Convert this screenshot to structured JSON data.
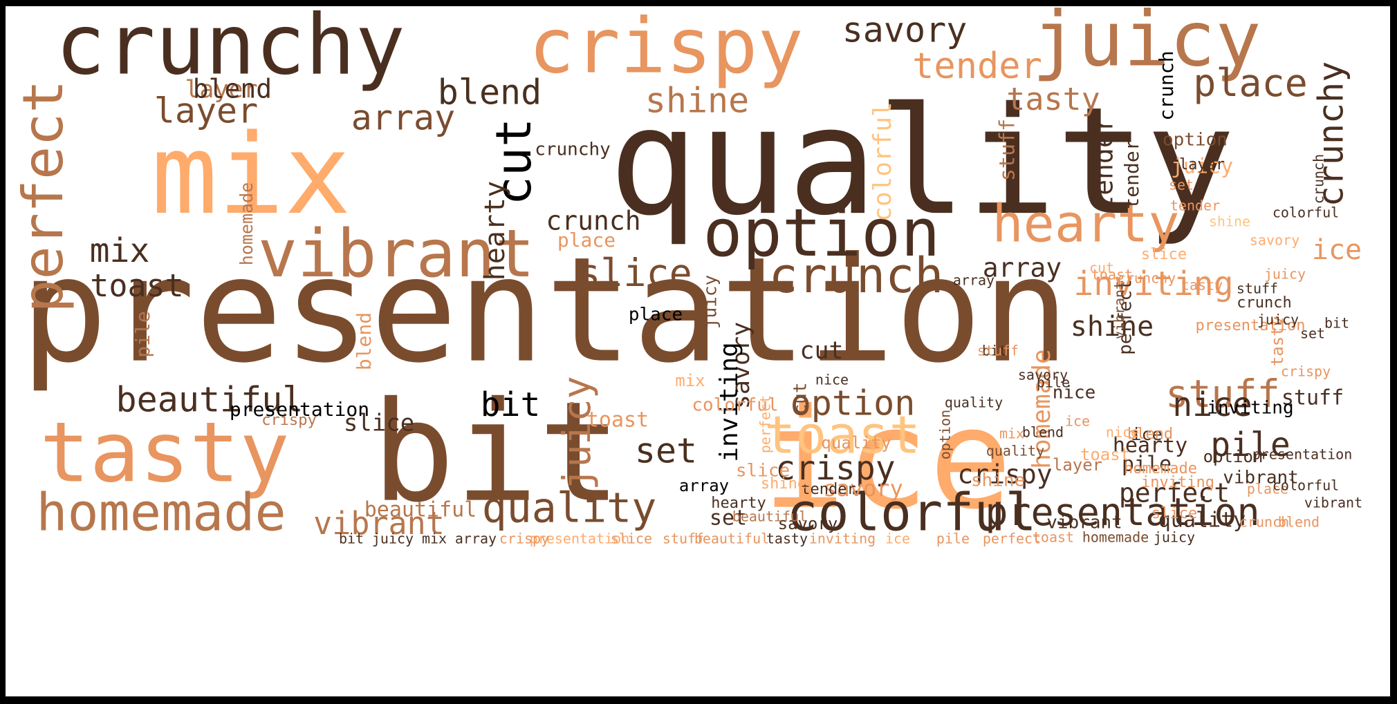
{
  "palette": {
    "c1": "#4a2f20",
    "c2": "#7a4c2e",
    "c3": "#b7764c",
    "c4": "#e8955f",
    "c5": "#ffab6b",
    "c6": "#ffc47f",
    "c7": "#000000"
  },
  "words": [
    {
      "text": "presentation",
      "color": "c2"
    },
    {
      "text": "quality",
      "color": "c1"
    },
    {
      "text": "bit",
      "color": "c2"
    },
    {
      "text": "ice",
      "color": "c5"
    },
    {
      "text": "mix",
      "color": "c5"
    },
    {
      "text": "crunchy",
      "color": "c1"
    },
    {
      "text": "crispy",
      "color": "c4"
    },
    {
      "text": "juicy",
      "color": "c3"
    },
    {
      "text": "tasty",
      "color": "c4"
    },
    {
      "text": "vibrant",
      "color": "c3"
    },
    {
      "text": "option",
      "color": "c1"
    },
    {
      "text": "homemade",
      "color": "c3"
    },
    {
      "text": "colorful",
      "color": "c1"
    },
    {
      "text": "presentation",
      "color": "c1"
    },
    {
      "text": "toast",
      "color": "c6"
    },
    {
      "text": "hearty",
      "color": "c4"
    },
    {
      "text": "perfect",
      "color": "c3"
    },
    {
      "text": "cut",
      "color": "c7"
    },
    {
      "text": "crunch",
      "color": "c2"
    },
    {
      "text": "quality",
      "color": "c2"
    },
    {
      "text": "beautiful",
      "color": "c1"
    },
    {
      "text": "savory",
      "color": "c1"
    },
    {
      "text": "tender",
      "color": "c4"
    },
    {
      "text": "place",
      "color": "c2"
    },
    {
      "text": "blend",
      "color": "c1"
    },
    {
      "text": "shine",
      "color": "c3"
    },
    {
      "text": "array",
      "color": "c2"
    },
    {
      "text": "layer",
      "color": "c2"
    },
    {
      "text": "slice",
      "color": "c2"
    },
    {
      "text": "stuff",
      "color": "c3"
    },
    {
      "text": "crispy",
      "color": "c1"
    },
    {
      "text": "juicy",
      "color": "c3"
    },
    {
      "text": "option",
      "color": "c2"
    },
    {
      "text": "inviting",
      "color": "c4"
    },
    {
      "text": "pile",
      "color": "c1"
    },
    {
      "text": "nice",
      "color": "c1"
    },
    {
      "text": "set",
      "color": "c1"
    },
    {
      "text": "bit",
      "color": "c7"
    },
    {
      "text": "perfect",
      "color": "c1"
    },
    {
      "text": "tasty",
      "color": "c3"
    },
    {
      "text": "crunchy",
      "color": "c1"
    },
    {
      "text": "ice",
      "color": "c4"
    },
    {
      "text": "mix",
      "color": "c1"
    },
    {
      "text": "toast",
      "color": "c1"
    },
    {
      "text": "vibrant",
      "color": "c3"
    },
    {
      "text": "hearty",
      "color": "c1"
    },
    {
      "text": "shine",
      "color": "c1"
    },
    {
      "text": "savory",
      "color": "c1"
    },
    {
      "text": "array",
      "color": "c1"
    },
    {
      "text": "tender",
      "color": "c1"
    },
    {
      "text": "homemade",
      "color": "c4"
    },
    {
      "text": "colorful",
      "color": "c6"
    },
    {
      "text": "cut",
      "color": "c1"
    },
    {
      "text": "crunch",
      "color": "c1"
    },
    {
      "text": "layer",
      "color": "c3"
    },
    {
      "text": "blend",
      "color": "c1"
    },
    {
      "text": "inviting",
      "color": "c7"
    },
    {
      "text": "place",
      "color": "c4"
    },
    {
      "text": "slice",
      "color": "c1"
    },
    {
      "text": "presentation",
      "color": "c7"
    },
    {
      "text": "stuff",
      "color": "c1"
    },
    {
      "text": "set",
      "color": "c1"
    },
    {
      "text": "hearty",
      "color": "c1"
    },
    {
      "text": "pile",
      "color": "c1"
    },
    {
      "text": "quality",
      "color": "c1"
    },
    {
      "text": "savory",
      "color": "c4"
    },
    {
      "text": "crispy",
      "color": "c1"
    },
    {
      "text": "beautiful",
      "color": "c3"
    },
    {
      "text": "juicy",
      "color": "c5"
    },
    {
      "text": "perfect",
      "color": "c1"
    },
    {
      "text": "stuff",
      "color": "c3"
    },
    {
      "text": "tender",
      "color": "c1"
    },
    {
      "text": "nice",
      "color": "c1"
    },
    {
      "text": "toast",
      "color": "c4"
    },
    {
      "text": "vibrant",
      "color": "c1"
    },
    {
      "text": "option",
      "color": "c2"
    },
    {
      "text": "shine",
      "color": "c4"
    },
    {
      "text": "slice",
      "color": "c4"
    },
    {
      "text": "crunchy",
      "color": "c1"
    },
    {
      "text": "crunch",
      "color": "c7"
    },
    {
      "text": "inviting",
      "color": "c7"
    },
    {
      "text": "pile",
      "color": "c3"
    },
    {
      "text": "juicy",
      "color": "c2"
    },
    {
      "text": "blend",
      "color": "c4"
    },
    {
      "text": "place",
      "color": "c7"
    },
    {
      "text": "colorful",
      "color": "c4"
    },
    {
      "text": "cut",
      "color": "c2"
    },
    {
      "text": "homemade",
      "color": "c3"
    },
    {
      "text": "mix",
      "color": "c5"
    },
    {
      "text": "quality",
      "color": "c4"
    },
    {
      "text": "tasty",
      "color": "c4"
    },
    {
      "text": "layer",
      "color": "c3"
    },
    {
      "text": "array",
      "color": "c7"
    },
    {
      "text": "ice",
      "color": "c1"
    },
    {
      "text": "toast",
      "color": "c5"
    },
    {
      "text": "tender",
      "color": "c1"
    },
    {
      "text": "savory",
      "color": "c1"
    },
    {
      "text": "option",
      "color": "c1"
    },
    {
      "text": "vibrant",
      "color": "c1"
    },
    {
      "text": "shine",
      "color": "c5"
    },
    {
      "text": "slice",
      "color": "c4"
    },
    {
      "text": "crispy",
      "color": "c3"
    },
    {
      "text": "set",
      "color": "c1"
    },
    {
      "text": "bit",
      "color": "c1"
    },
    {
      "text": "hearty",
      "color": "c1"
    },
    {
      "text": "nice",
      "color": "c1"
    },
    {
      "text": "beautiful",
      "color": "c3"
    },
    {
      "text": "perfect",
      "color": "c5"
    },
    {
      "text": "presentation",
      "color": "c4"
    },
    {
      "text": "stuff",
      "color": "c4"
    },
    {
      "text": "crunch",
      "color": "c1"
    },
    {
      "text": "juicy",
      "color": "c1"
    },
    {
      "text": "place",
      "color": "c4"
    },
    {
      "text": "blend",
      "color": "c4"
    },
    {
      "text": "colorful",
      "color": "c1"
    },
    {
      "text": "vibrant",
      "color": "c2"
    },
    {
      "text": "savory",
      "color": "c1"
    },
    {
      "text": "pile",
      "color": "c1"
    },
    {
      "text": "quality",
      "color": "c2"
    },
    {
      "text": "mix",
      "color": "c4"
    },
    {
      "text": "crunchy",
      "color": "c4"
    },
    {
      "text": "toast",
      "color": "c4"
    },
    {
      "text": "array",
      "color": "c1"
    },
    {
      "text": "ice",
      "color": "c4"
    },
    {
      "text": "option",
      "color": "c2"
    },
    {
      "text": "slice",
      "color": "c5"
    },
    {
      "text": "tasty",
      "color": "c4"
    },
    {
      "text": "cut",
      "color": "c5"
    },
    {
      "text": "homemade",
      "color": "c4"
    },
    {
      "text": "inviting",
      "color": "c4"
    },
    {
      "text": "nice",
      "color": "c5"
    },
    {
      "text": "blend",
      "color": "c1"
    },
    {
      "text": "layer",
      "color": "c1"
    },
    {
      "text": "set",
      "color": "c4"
    },
    {
      "text": "tender",
      "color": "c4"
    },
    {
      "text": "shine",
      "color": "c6"
    },
    {
      "text": "savory",
      "color": "c5"
    },
    {
      "text": "stuff",
      "color": "c1"
    },
    {
      "text": "juicy",
      "color": "c4"
    },
    {
      "text": "crunch",
      "color": "c1"
    },
    {
      "text": "bit",
      "color": "c1"
    },
    {
      "text": "crispy",
      "color": "c4"
    },
    {
      "text": "quality",
      "color": "c1"
    },
    {
      "text": "presentation",
      "color": "c1"
    },
    {
      "text": "vibrant",
      "color": "c1"
    },
    {
      "text": "colorful",
      "color": "c1"
    },
    {
      "text": "blend",
      "color": "c4"
    },
    {
      "text": "crunch",
      "color": "c4"
    },
    {
      "text": "juicy",
      "color": "c1"
    },
    {
      "text": "homemade",
      "color": "c2"
    },
    {
      "text": "toast",
      "color": "c4"
    },
    {
      "text": "perfect",
      "color": "c4"
    },
    {
      "text": "pile",
      "color": "c4"
    },
    {
      "text": "ice",
      "color": "c5"
    },
    {
      "text": "inviting",
      "color": "c4"
    },
    {
      "text": "tasty",
      "color": "c1"
    },
    {
      "text": "beautiful",
      "color": "c4"
    },
    {
      "text": "stuff",
      "color": "c4"
    },
    {
      "text": "slice",
      "color": "c4"
    },
    {
      "text": "presentation",
      "color": "c5"
    },
    {
      "text": "crispy",
      "color": "c4"
    },
    {
      "text": "array",
      "color": "c1"
    },
    {
      "text": "mix",
      "color": "c1"
    },
    {
      "text": "juicy",
      "color": "c1"
    },
    {
      "text": "bit",
      "color": "c1"
    },
    {
      "text": "vibrant",
      "color": "c1"
    },
    {
      "text": "pile",
      "color": "c4"
    },
    {
      "text": "layer",
      "color": "c4"
    },
    {
      "text": "tasty",
      "color": "c1"
    },
    {
      "text": "homemade",
      "color": "c1"
    }
  ]
}
